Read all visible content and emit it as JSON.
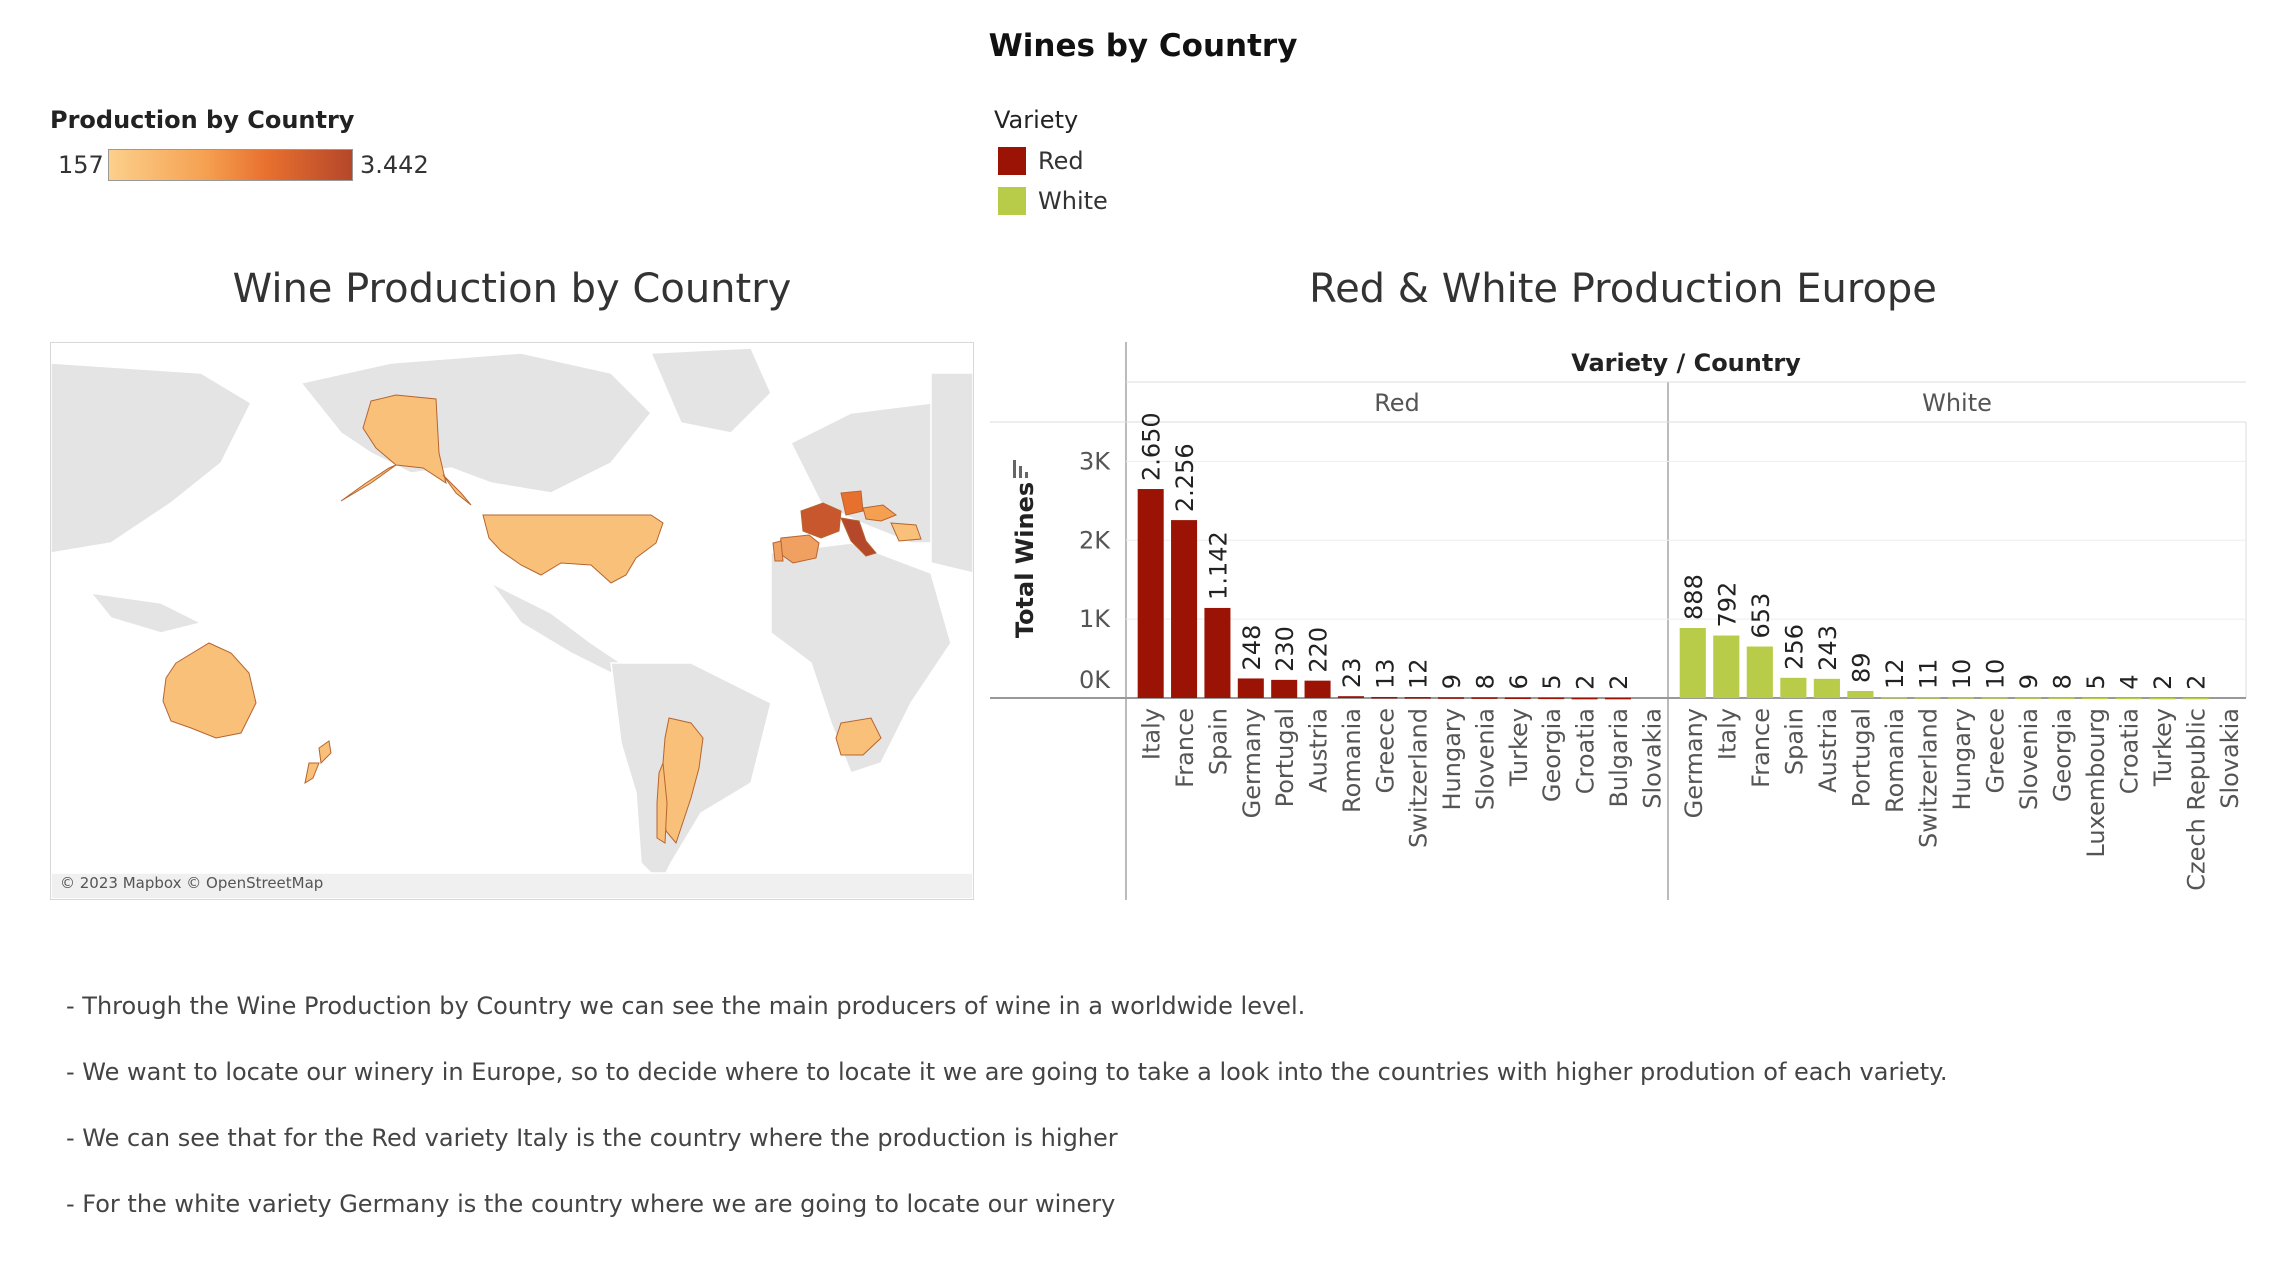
{
  "dashboard": {
    "title": "Wines by Country"
  },
  "production_legend": {
    "title": "Production by Country",
    "min_label": "157",
    "max_label": "3.442",
    "min_value": 157,
    "max_value": 3442
  },
  "variety_legend": {
    "title": "Variety",
    "items": [
      {
        "label": "Red",
        "color": "#9b1305"
      },
      {
        "label": "White",
        "color": "#b9cc4a"
      }
    ]
  },
  "map": {
    "title": "Wine Production by Country",
    "credit": "© 2023 Mapbox © OpenStreetMap",
    "colors": {
      "low": "#f9c07a",
      "mid": "#f0a060",
      "high": "#c9572d",
      "land": "#e4e4e4",
      "water": "#ffffff"
    }
  },
  "chart_data": {
    "type": "bar",
    "title": "Red & White Production Europe",
    "header": "Variety / Country",
    "ylabel": "Total Wines",
    "ylim": [
      0,
      3500
    ],
    "yticks": [
      0,
      1000,
      2000,
      3000
    ],
    "ytick_labels": [
      "0K",
      "1K",
      "2K",
      "3K"
    ],
    "grid": true,
    "panels": [
      {
        "name": "Red",
        "color": "#9b1305",
        "categories": [
          "Italy",
          "France",
          "Spain",
          "Germany",
          "Portugal",
          "Austria",
          "Romania",
          "Greece",
          "Switzerland",
          "Hungary",
          "Slovenia",
          "Turkey",
          "Georgia",
          "Croatia",
          "Bulgaria",
          "Slovakia"
        ],
        "values": [
          2650,
          2256,
          1142,
          248,
          230,
          220,
          23,
          13,
          12,
          9,
          8,
          6,
          5,
          2,
          2,
          0
        ],
        "labels": [
          "2.650",
          "2.256",
          "1.142",
          "248",
          "230",
          "220",
          "23",
          "13",
          "12",
          "9",
          "8",
          "6",
          "5",
          "2",
          "2",
          ""
        ]
      },
      {
        "name": "White",
        "color": "#b9cc4a",
        "categories": [
          "Germany",
          "Italy",
          "France",
          "Spain",
          "Austria",
          "Portugal",
          "Romania",
          "Switzerland",
          "Hungary",
          "Greece",
          "Slovenia",
          "Georgia",
          "Luxembourg",
          "Croatia",
          "Turkey",
          "Czech Republic",
          "Slovakia"
        ],
        "values": [
          888,
          792,
          653,
          256,
          243,
          89,
          12,
          11,
          10,
          10,
          9,
          8,
          5,
          4,
          2,
          2,
          0
        ],
        "labels": [
          "888",
          "792",
          "653",
          "256",
          "243",
          "89",
          "12",
          "11",
          "10",
          "10",
          "9",
          "8",
          "5",
          "4",
          "2",
          "2",
          ""
        ]
      }
    ]
  },
  "notes": [
    "- Through the Wine Production by Country we can see the main producers of wine in a worldwide level.",
    "- We want to locate our winery in Europe, so to decide where to locate it we are going to take a look into the countries with higher prodution of each variety.",
    "- We can see that for the Red variety Italy is the country where the production is higher",
    "- For the white variety Germany is the country where we are going to locate our winery"
  ]
}
